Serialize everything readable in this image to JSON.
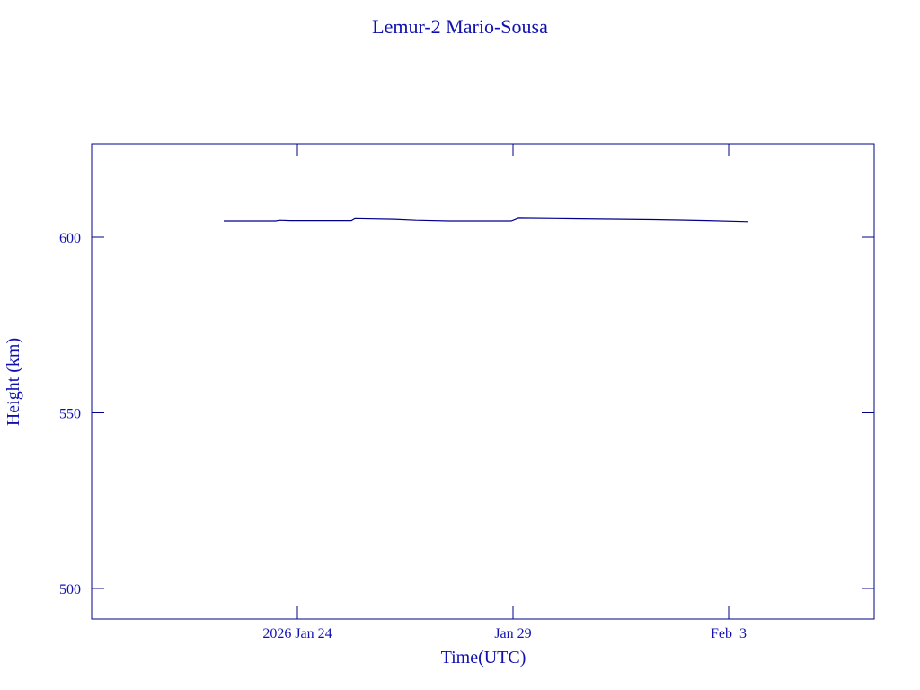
{
  "chart_data": {
    "type": "line",
    "title": "Lemur-2 Mario-Sousa",
    "x_label": "Time(UTC)",
    "y_label": "Height (km)",
    "x": [
      "2026-01-22T07:00",
      "2026-01-23T12:00",
      "2026-01-23T14:00",
      "2026-01-23T20:00",
      "2026-01-25T06:00",
      "2026-01-25T08:00",
      "2026-01-26T06:00",
      "2026-01-26T18:00",
      "2026-01-27T12:00",
      "2026-01-28T23:00",
      "2026-01-29T03:00",
      "2026-01-30T00:00",
      "2026-02-01T06:00",
      "2026-02-02T12:00",
      "2026-02-03T11:00"
    ],
    "series": [
      {
        "name": "Height",
        "color": "#00008b",
        "values": [
          604.6,
          604.6,
          604.8,
          604.7,
          604.7,
          605.3,
          605.1,
          604.8,
          604.6,
          604.6,
          605.4,
          605.3,
          605.0,
          604.7,
          604.4
        ]
      }
    ],
    "xlim": [
      "2026-01-19T05:30",
      "2026-02-06T09:00"
    ],
    "xticks": [
      {
        "value": "2026-01-24T00:00",
        "label": "2026 Jan 24"
      },
      {
        "value": "2026-01-29T00:00",
        "label": "Jan 29"
      },
      {
        "value": "2026-02-03T00:00",
        "label": "Feb  3"
      }
    ],
    "ylim": [
      491.3,
      626.6
    ],
    "yticks": [
      500,
      550,
      600
    ],
    "grid": false
  }
}
